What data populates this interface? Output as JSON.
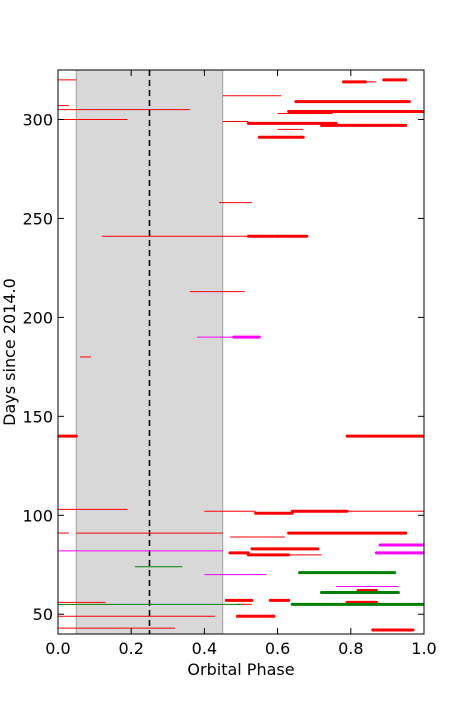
{
  "chart_data": {
    "type": "scatter",
    "xlabel": "Orbital Phase",
    "ylabel": "Days since 2014.0",
    "xlim": [
      0.0,
      1.0
    ],
    "ylim": [
      40,
      325
    ],
    "xticks": [
      "0.0",
      "0.2",
      "0.4",
      "0.6",
      "0.8",
      "1.0"
    ],
    "yticks": [
      "50",
      "100",
      "150",
      "200",
      "250",
      "300"
    ],
    "shaded_region": [
      0.05,
      0.45
    ],
    "dashed_vline": 0.25,
    "colors": {
      "red": "#ff0000",
      "magenta": "#ff00ff",
      "green": "#007f00",
      "shade": "#d8d8d8",
      "dashed": "#000000"
    },
    "series": [
      {
        "color": "red",
        "segments": [
          {
            "y": 320,
            "x": [
              0.0,
              0.05
            ]
          },
          {
            "y": 319,
            "x": [
              0.78,
              0.84
            ],
            "thick": true
          },
          {
            "y": 320,
            "x": [
              0.89,
              0.95
            ],
            "thick": true
          },
          {
            "y": 319,
            "x": [
              0.84,
              0.87
            ]
          },
          {
            "y": 312,
            "x": [
              0.45,
              0.61
            ]
          },
          {
            "y": 309,
            "x": [
              0.65,
              0.96
            ],
            "thick": true
          },
          {
            "y": 307,
            "x": [
              0.0,
              0.03
            ]
          },
          {
            "y": 305,
            "x": [
              0.0,
              0.36
            ]
          },
          {
            "y": 304,
            "x": [
              0.63,
              1.0
            ],
            "thick": true
          },
          {
            "y": 303,
            "x": [
              0.6,
              0.75
            ]
          },
          {
            "y": 300,
            "x": [
              0.0,
              0.19
            ]
          },
          {
            "y": 299,
            "x": [
              0.45,
              0.52
            ]
          },
          {
            "y": 298,
            "x": [
              0.52,
              0.76
            ],
            "thick": true
          },
          {
            "y": 297,
            "x": [
              0.72,
              0.95
            ],
            "thick": true
          },
          {
            "y": 295,
            "x": [
              0.6,
              0.67
            ]
          },
          {
            "y": 291,
            "x": [
              0.55,
              0.67
            ],
            "thick": true
          },
          {
            "y": 258,
            "x": [
              0.44,
              0.53
            ]
          },
          {
            "y": 241,
            "x": [
              0.12,
              0.52
            ]
          },
          {
            "y": 241,
            "x": [
              0.52,
              0.6
            ],
            "thick": true
          },
          {
            "y": 241,
            "x": [
              0.6,
              0.68
            ],
            "thick": true
          },
          {
            "y": 213,
            "x": [
              0.36,
              0.51
            ]
          },
          {
            "y": 180,
            "x": [
              0.06,
              0.09
            ]
          },
          {
            "y": 140,
            "x": [
              0.0,
              0.05
            ],
            "thick": true
          },
          {
            "y": 140,
            "x": [
              0.79,
              1.0
            ],
            "thick": true
          },
          {
            "y": 103,
            "x": [
              0.0,
              0.19
            ]
          },
          {
            "y": 102,
            "x": [
              0.4,
              0.54
            ]
          },
          {
            "y": 101,
            "x": [
              0.54,
              0.64
            ],
            "thick": true
          },
          {
            "y": 102,
            "x": [
              0.64,
              0.79
            ],
            "thick": true
          },
          {
            "y": 102,
            "x": [
              0.79,
              1.0
            ]
          },
          {
            "y": 91,
            "x": [
              0.0,
              0.03
            ]
          },
          {
            "y": 91,
            "x": [
              0.05,
              0.45
            ]
          },
          {
            "y": 91,
            "x": [
              0.63,
              0.95
            ],
            "thick": true
          },
          {
            "y": 89,
            "x": [
              0.47,
              0.62
            ]
          },
          {
            "y": 83,
            "x": [
              0.53,
              0.71
            ],
            "thick": true
          },
          {
            "y": 81,
            "x": [
              0.47,
              0.52
            ],
            "thick": true
          },
          {
            "y": 80,
            "x": [
              0.52,
              0.63
            ],
            "thick": true
          },
          {
            "y": 80,
            "x": [
              0.63,
              0.72
            ]
          },
          {
            "y": 62,
            "x": [
              0.82,
              0.87
            ],
            "thick": true
          },
          {
            "y": 57,
            "x": [
              0.46,
              0.53
            ],
            "thick": true
          },
          {
            "y": 57,
            "x": [
              0.58,
              0.63
            ],
            "thick": true
          },
          {
            "y": 56,
            "x": [
              0.79,
              0.87
            ],
            "thick": true
          },
          {
            "y": 56,
            "x": [
              0.0,
              0.13
            ]
          },
          {
            "y": 55,
            "x": [
              0.49,
              0.53
            ]
          },
          {
            "y": 49,
            "x": [
              0.0,
              0.43
            ]
          },
          {
            "y": 49,
            "x": [
              0.49,
              0.59
            ],
            "thick": true
          },
          {
            "y": 43,
            "x": [
              0.0,
              0.32
            ]
          },
          {
            "y": 42,
            "x": [
              0.86,
              0.97
            ],
            "thick": true
          }
        ]
      },
      {
        "color": "magenta",
        "segments": [
          {
            "y": 190,
            "x": [
              0.38,
              0.48
            ]
          },
          {
            "y": 190,
            "x": [
              0.48,
              0.55
            ],
            "thick": true
          },
          {
            "y": 85,
            "x": [
              0.88,
              1.0
            ],
            "thick": true
          },
          {
            "y": 82,
            "x": [
              0.0,
              0.45
            ]
          },
          {
            "y": 81,
            "x": [
              0.87,
              1.0
            ],
            "thick": true
          },
          {
            "y": 70,
            "x": [
              0.4,
              0.57
            ]
          },
          {
            "y": 64,
            "x": [
              0.76,
              0.93
            ]
          }
        ]
      },
      {
        "color": "green",
        "segments": [
          {
            "y": 74,
            "x": [
              0.21,
              0.34
            ]
          },
          {
            "y": 71,
            "x": [
              0.66,
              0.92
            ],
            "thick": true
          },
          {
            "y": 61,
            "x": [
              0.72,
              0.93
            ],
            "thick": true
          },
          {
            "y": 55,
            "x": [
              0.0,
              0.5
            ]
          },
          {
            "y": 55,
            "x": [
              0.64,
              1.0
            ],
            "thick": true
          }
        ]
      }
    ]
  }
}
